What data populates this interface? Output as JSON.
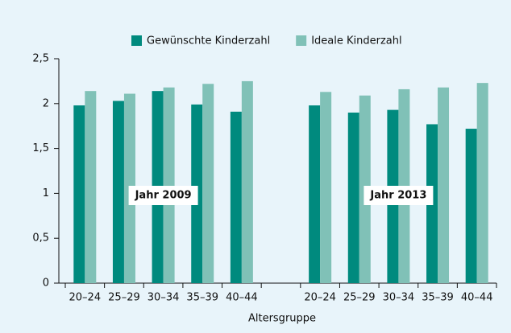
{
  "chart_data": {
    "type": "bar",
    "categories": [
      "20–24",
      "25–29",
      "30–34",
      "35–39",
      "40–44",
      null,
      "20–24",
      "25–29",
      "30–34",
      "35–39",
      "40–44"
    ],
    "series": [
      {
        "name": "Gewünschte Kinderzahl",
        "color": "#008a7e",
        "values": [
          1.98,
          2.03,
          2.14,
          1.99,
          1.91,
          null,
          1.98,
          1.9,
          1.93,
          1.77,
          1.72
        ]
      },
      {
        "name": "Ideale Kinderzahl",
        "color": "#80c1b7",
        "values": [
          2.14,
          2.11,
          2.18,
          2.22,
          2.25,
          null,
          2.13,
          2.09,
          2.16,
          2.18,
          2.23
        ]
      }
    ],
    "xlabel": "Altersgruppe",
    "annotations": [
      "Jahr 2009",
      "Jahr 2013"
    ],
    "ylim": [
      0,
      2.5
    ],
    "yticks": [
      0,
      {
        "value": 0.5,
        "label": "0,5"
      },
      1,
      {
        "value": 1.5,
        "label": "1,5"
      },
      2,
      {
        "value": 2.5,
        "label": "2,5"
      }
    ],
    "grid": false,
    "legend": "top"
  }
}
